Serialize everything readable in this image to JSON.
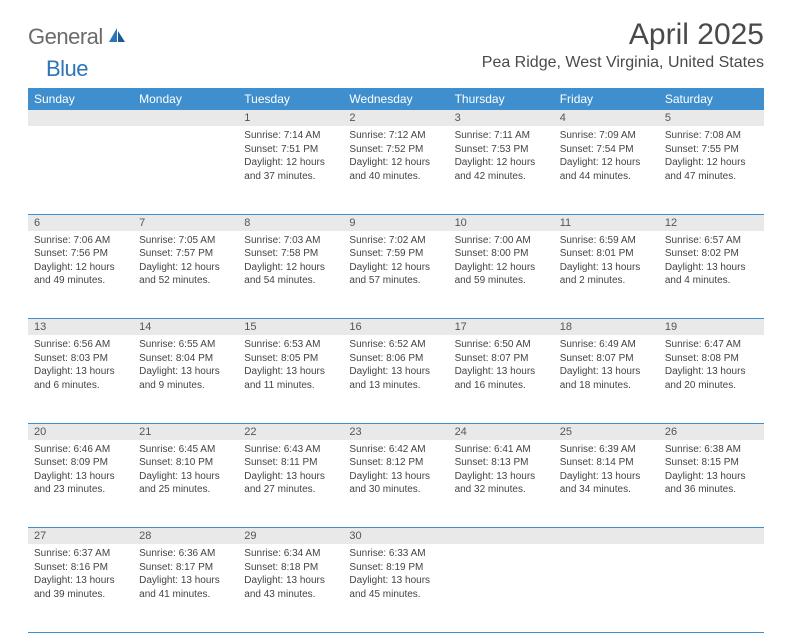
{
  "logo": {
    "part1": "General",
    "part2": "Blue"
  },
  "title": "April 2025",
  "location": "Pea Ridge, West Virginia, United States",
  "colors": {
    "header_bg": "#3f8fce",
    "header_text": "#ffffff",
    "daynum_bg": "#e9e9e9",
    "border": "#3f8fce",
    "logo_gray": "#6b6b6b",
    "logo_blue": "#2d74b8"
  },
  "day_headers": [
    "Sunday",
    "Monday",
    "Tuesday",
    "Wednesday",
    "Thursday",
    "Friday",
    "Saturday"
  ],
  "weeks": [
    [
      null,
      null,
      {
        "n": "1",
        "sr": "7:14 AM",
        "ss": "7:51 PM",
        "dl": "12 hours and 37 minutes."
      },
      {
        "n": "2",
        "sr": "7:12 AM",
        "ss": "7:52 PM",
        "dl": "12 hours and 40 minutes."
      },
      {
        "n": "3",
        "sr": "7:11 AM",
        "ss": "7:53 PM",
        "dl": "12 hours and 42 minutes."
      },
      {
        "n": "4",
        "sr": "7:09 AM",
        "ss": "7:54 PM",
        "dl": "12 hours and 44 minutes."
      },
      {
        "n": "5",
        "sr": "7:08 AM",
        "ss": "7:55 PM",
        "dl": "12 hours and 47 minutes."
      }
    ],
    [
      {
        "n": "6",
        "sr": "7:06 AM",
        "ss": "7:56 PM",
        "dl": "12 hours and 49 minutes."
      },
      {
        "n": "7",
        "sr": "7:05 AM",
        "ss": "7:57 PM",
        "dl": "12 hours and 52 minutes."
      },
      {
        "n": "8",
        "sr": "7:03 AM",
        "ss": "7:58 PM",
        "dl": "12 hours and 54 minutes."
      },
      {
        "n": "9",
        "sr": "7:02 AM",
        "ss": "7:59 PM",
        "dl": "12 hours and 57 minutes."
      },
      {
        "n": "10",
        "sr": "7:00 AM",
        "ss": "8:00 PM",
        "dl": "12 hours and 59 minutes."
      },
      {
        "n": "11",
        "sr": "6:59 AM",
        "ss": "8:01 PM",
        "dl": "13 hours and 2 minutes."
      },
      {
        "n": "12",
        "sr": "6:57 AM",
        "ss": "8:02 PM",
        "dl": "13 hours and 4 minutes."
      }
    ],
    [
      {
        "n": "13",
        "sr": "6:56 AM",
        "ss": "8:03 PM",
        "dl": "13 hours and 6 minutes."
      },
      {
        "n": "14",
        "sr": "6:55 AM",
        "ss": "8:04 PM",
        "dl": "13 hours and 9 minutes."
      },
      {
        "n": "15",
        "sr": "6:53 AM",
        "ss": "8:05 PM",
        "dl": "13 hours and 11 minutes."
      },
      {
        "n": "16",
        "sr": "6:52 AM",
        "ss": "8:06 PM",
        "dl": "13 hours and 13 minutes."
      },
      {
        "n": "17",
        "sr": "6:50 AM",
        "ss": "8:07 PM",
        "dl": "13 hours and 16 minutes."
      },
      {
        "n": "18",
        "sr": "6:49 AM",
        "ss": "8:07 PM",
        "dl": "13 hours and 18 minutes."
      },
      {
        "n": "19",
        "sr": "6:47 AM",
        "ss": "8:08 PM",
        "dl": "13 hours and 20 minutes."
      }
    ],
    [
      {
        "n": "20",
        "sr": "6:46 AM",
        "ss": "8:09 PM",
        "dl": "13 hours and 23 minutes."
      },
      {
        "n": "21",
        "sr": "6:45 AM",
        "ss": "8:10 PM",
        "dl": "13 hours and 25 minutes."
      },
      {
        "n": "22",
        "sr": "6:43 AM",
        "ss": "8:11 PM",
        "dl": "13 hours and 27 minutes."
      },
      {
        "n": "23",
        "sr": "6:42 AM",
        "ss": "8:12 PM",
        "dl": "13 hours and 30 minutes."
      },
      {
        "n": "24",
        "sr": "6:41 AM",
        "ss": "8:13 PM",
        "dl": "13 hours and 32 minutes."
      },
      {
        "n": "25",
        "sr": "6:39 AM",
        "ss": "8:14 PM",
        "dl": "13 hours and 34 minutes."
      },
      {
        "n": "26",
        "sr": "6:38 AM",
        "ss": "8:15 PM",
        "dl": "13 hours and 36 minutes."
      }
    ],
    [
      {
        "n": "27",
        "sr": "6:37 AM",
        "ss": "8:16 PM",
        "dl": "13 hours and 39 minutes."
      },
      {
        "n": "28",
        "sr": "6:36 AM",
        "ss": "8:17 PM",
        "dl": "13 hours and 41 minutes."
      },
      {
        "n": "29",
        "sr": "6:34 AM",
        "ss": "8:18 PM",
        "dl": "13 hours and 43 minutes."
      },
      {
        "n": "30",
        "sr": "6:33 AM",
        "ss": "8:19 PM",
        "dl": "13 hours and 45 minutes."
      },
      null,
      null,
      null
    ]
  ],
  "labels": {
    "sunrise": "Sunrise:",
    "sunset": "Sunset:",
    "daylight": "Daylight:"
  }
}
